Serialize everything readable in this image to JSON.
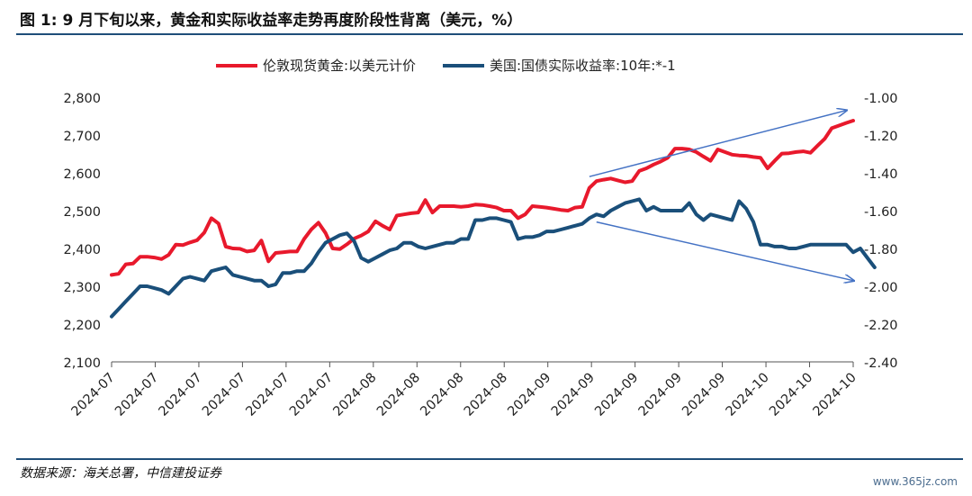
{
  "header": {
    "title": "图 1: 9 月下旬以来，黄金和实际收益率走势再度阶段性背离（美元，%）"
  },
  "footer": {
    "source": "数据来源：海关总署，中信建投证券",
    "watermark": "www.365jz.com"
  },
  "chart_data": {
    "type": "line",
    "x_labels": [
      "2024-07",
      "2024-07",
      "2024-07",
      "2024-07",
      "2024-07",
      "2024-07",
      "2024-08",
      "2024-08",
      "2024-08",
      "2024-08",
      "2024-09",
      "2024-09",
      "2024-09",
      "2024-09",
      "2024-09",
      "2024-10",
      "2024-10",
      "2024-10"
    ],
    "y_left": {
      "lim": [
        2100,
        2800
      ],
      "ticks": [
        "2,100",
        "2,200",
        "2,300",
        "2,400",
        "2,500",
        "2,600",
        "2,700",
        "2,800"
      ]
    },
    "y_right": {
      "lim": [
        -2.4,
        -1.0
      ],
      "ticks": [
        "-1.00",
        "-1.20",
        "-1.40",
        "-1.60",
        "-1.80",
        "-2.00",
        "-2.20",
        "-2.40"
      ]
    },
    "series": [
      {
        "name": "伦敦现货黄金:以美元计价",
        "axis": "left",
        "color": "#e8192c",
        "values": [
          2330,
          2333,
          2358,
          2360,
          2378,
          2378,
          2376,
          2372,
          2383,
          2410,
          2409,
          2416,
          2422,
          2442,
          2480,
          2466,
          2405,
          2400,
          2399,
          2392,
          2395,
          2421,
          2366,
          2388,
          2390,
          2392,
          2392,
          2425,
          2450,
          2468,
          2441,
          2400,
          2398,
          2411,
          2426,
          2434,
          2445,
          2472,
          2460,
          2450,
          2487,
          2490,
          2493,
          2495,
          2528,
          2495,
          2512,
          2512,
          2512,
          2510,
          2512,
          2516,
          2515,
          2512,
          2508,
          2500,
          2500,
          2480,
          2490,
          2512,
          2510,
          2508,
          2505,
          2502,
          2500,
          2508,
          2510,
          2560,
          2578,
          2582,
          2585,
          2580,
          2575,
          2578,
          2605,
          2612,
          2622,
          2630,
          2640,
          2664,
          2664,
          2662,
          2655,
          2643,
          2632,
          2662,
          2655,
          2648,
          2646,
          2645,
          2642,
          2640,
          2612,
          2632,
          2651,
          2652,
          2655,
          2657,
          2653,
          2672,
          2690,
          2718,
          2725,
          2732,
          2738
        ]
      },
      {
        "name": "美国:国债实际收益率:10年:*-1",
        "axis": "right",
        "color": "#1a4f7a",
        "values": [
          -2.16,
          -2.12,
          -2.08,
          -2.04,
          -2.0,
          -2.0,
          -2.01,
          -2.02,
          -2.04,
          -2.0,
          -1.96,
          -1.95,
          -1.96,
          -1.97,
          -1.92,
          -1.91,
          -1.9,
          -1.94,
          -1.95,
          -1.96,
          -1.97,
          -1.97,
          -2.0,
          -1.99,
          -1.93,
          -1.93,
          -1.92,
          -1.92,
          -1.88,
          -1.82,
          -1.77,
          -1.75,
          -1.73,
          -1.72,
          -1.76,
          -1.85,
          -1.87,
          -1.85,
          -1.83,
          -1.81,
          -1.8,
          -1.77,
          -1.77,
          -1.79,
          -1.8,
          -1.79,
          -1.78,
          -1.77,
          -1.77,
          -1.75,
          -1.75,
          -1.65,
          -1.65,
          -1.64,
          -1.64,
          -1.65,
          -1.66,
          -1.75,
          -1.74,
          -1.74,
          -1.73,
          -1.71,
          -1.71,
          -1.7,
          -1.69,
          -1.68,
          -1.67,
          -1.64,
          -1.62,
          -1.63,
          -1.6,
          -1.58,
          -1.56,
          -1.55,
          -1.54,
          -1.6,
          -1.58,
          -1.6,
          -1.6,
          -1.6,
          -1.6,
          -1.56,
          -1.62,
          -1.65,
          -1.62,
          -1.63,
          -1.64,
          -1.65,
          -1.55,
          -1.59,
          -1.66,
          -1.78,
          -1.78,
          -1.79,
          -1.79,
          -1.8,
          -1.8,
          -1.79,
          -1.78,
          -1.78,
          -1.78,
          -1.78,
          -1.78,
          -1.78,
          -1.82,
          -1.8,
          -1.85,
          -1.9
        ]
      }
    ],
    "annotations": [
      {
        "type": "arrow",
        "color": "#4472c4",
        "from": [
          67,
          -1.42
        ],
        "to": [
          103,
          -1.07
        ],
        "axis": "right"
      },
      {
        "type": "arrow",
        "color": "#4472c4",
        "from": [
          68,
          -1.66
        ],
        "to": [
          104,
          -1.97
        ],
        "axis": "right"
      }
    ]
  }
}
